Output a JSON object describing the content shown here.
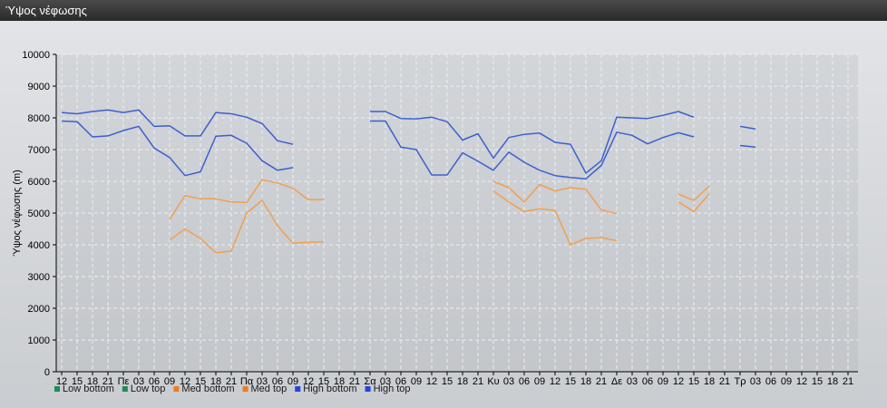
{
  "window": {
    "title": "Ύψος νέφωσης"
  },
  "chart_data": {
    "type": "line",
    "title": "",
    "ylabel": "Ύψος νέφωσης (m)",
    "xlabel": "",
    "ylim": [
      0,
      10000
    ],
    "yticks": [
      0,
      1000,
      2000,
      3000,
      4000,
      5000,
      6000,
      7000,
      8000,
      9000,
      10000
    ],
    "grid": true,
    "legend_position": "bottom-left",
    "x_tick_labels": [
      "12",
      "15",
      "18",
      "21",
      "Πε",
      "03",
      "06",
      "09",
      "12",
      "15",
      "18",
      "21",
      "Πα",
      "03",
      "06",
      "09",
      "12",
      "15",
      "18",
      "21",
      "Σα",
      "03",
      "06",
      "09",
      "12",
      "15",
      "18",
      "21",
      "Κυ",
      "03",
      "06",
      "09",
      "12",
      "15",
      "18",
      "21",
      "Δε",
      "03",
      "06",
      "09",
      "12",
      "15",
      "18",
      "21",
      "Τρ",
      "03",
      "06",
      "09",
      "12",
      "15",
      "18",
      "21"
    ],
    "series": [
      {
        "name": "Low bottom",
        "color": "#1f8a5a",
        "values": []
      },
      {
        "name": "Low top",
        "color": "#1f8a5a",
        "values": []
      },
      {
        "name": "Med bottom",
        "color": "#f0a050",
        "values": [
          null,
          null,
          null,
          null,
          null,
          null,
          null,
          4150,
          4500,
          4200,
          3750,
          3800,
          5000,
          5400,
          4600,
          4050,
          4080,
          4100,
          null,
          null,
          null,
          null,
          null,
          null,
          null,
          null,
          null,
          null,
          5700,
          5350,
          5050,
          5130,
          5080,
          4000,
          4200,
          4230,
          4130,
          null,
          null,
          null,
          5350,
          5050,
          5600,
          null,
          null,
          null,
          null,
          null,
          null,
          null,
          null,
          null
        ]
      },
      {
        "name": "Med top",
        "color": "#f0a050",
        "values": [
          null,
          null,
          null,
          null,
          null,
          null,
          null,
          4800,
          5550,
          5450,
          5450,
          5350,
          5330,
          6050,
          5950,
          5780,
          5420,
          5420,
          null,
          null,
          null,
          null,
          null,
          null,
          null,
          null,
          null,
          null,
          6000,
          5800,
          5350,
          5900,
          5700,
          5800,
          5750,
          5100,
          4980,
          null,
          null,
          null,
          5600,
          5400,
          5850,
          null,
          null,
          null,
          null,
          null,
          null,
          null,
          null,
          null
        ]
      },
      {
        "name": "High bottom",
        "color": "#3d5fcf",
        "values": [
          7900,
          7880,
          7400,
          7430,
          7600,
          7730,
          7050,
          6750,
          6180,
          6300,
          7420,
          7450,
          7200,
          6650,
          6350,
          6430,
          null,
          null,
          null,
          null,
          7900,
          7900,
          7080,
          7000,
          6200,
          6200,
          6900,
          6630,
          6350,
          6920,
          6600,
          6350,
          6180,
          6120,
          6080,
          6500,
          7550,
          7450,
          7180,
          7380,
          7530,
          7400,
          null,
          null,
          7130,
          7080,
          null,
          null,
          null,
          null,
          null,
          null
        ]
      },
      {
        "name": "High top",
        "color": "#3d5fcf",
        "values": [
          8170,
          8130,
          8200,
          8250,
          8170,
          8250,
          7730,
          7750,
          7430,
          7430,
          8170,
          8130,
          8020,
          7820,
          7280,
          7170,
          null,
          null,
          null,
          null,
          8200,
          8200,
          7980,
          7970,
          8020,
          7880,
          7300,
          7500,
          6730,
          7380,
          7480,
          7520,
          7230,
          7170,
          6260,
          6650,
          8020,
          8000,
          7980,
          8080,
          8200,
          8020,
          null,
          null,
          7730,
          7650,
          null,
          null,
          null,
          null,
          null,
          null
        ]
      }
    ]
  }
}
